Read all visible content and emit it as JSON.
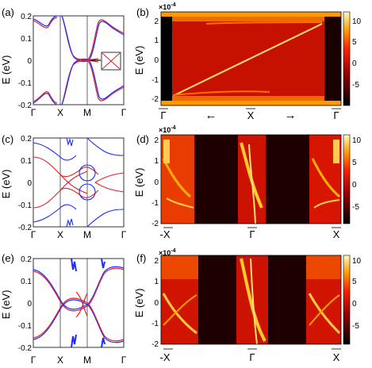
{
  "panels": {
    "a": {
      "label": "(a)",
      "ylabel": "E (eV)",
      "yticks": [
        "0.2",
        "0.1",
        "0",
        "-0.1",
        "-0.2"
      ],
      "xticks": [
        "Γ",
        "X",
        "M",
        "Γ"
      ]
    },
    "b": {
      "label": "(b)",
      "ylabel": "E (eV)",
      "scale": "×10",
      "scale_exp": "-4",
      "yticks": [
        "2",
        "1",
        "0",
        "-1",
        "-2"
      ],
      "xticks": [
        "Γ",
        "X",
        "Γ"
      ],
      "arrows": [
        "←",
        "→"
      ],
      "cbar_ticks": [
        "10",
        "5",
        "0",
        "-5"
      ]
    },
    "c": {
      "label": "(c)",
      "ylabel": "E (eV)",
      "yticks": [
        "0.2",
        "0.1",
        "0",
        "-0.1",
        "-0.2"
      ],
      "xticks": [
        "Γ",
        "X",
        "M",
        "Γ"
      ]
    },
    "d": {
      "label": "(d)",
      "ylabel": "E (eV)",
      "scale": "×10",
      "scale_exp": "-4",
      "yticks": [
        "2",
        "1",
        "0",
        "-1",
        "-2"
      ],
      "xticks": [
        "-X",
        "Γ",
        "X"
      ],
      "cbar_ticks": [
        "10",
        "5",
        "0",
        "-5"
      ]
    },
    "e": {
      "label": "(e)",
      "ylabel": "E (eV)",
      "yticks": [
        "0.2",
        "0.1",
        "0",
        "-0.1",
        "-0.2"
      ],
      "xticks": [
        "Γ",
        "X",
        "M",
        "Γ"
      ]
    },
    "f": {
      "label": "(f)",
      "ylabel": "E (eV)",
      "scale": "×10",
      "scale_exp": "-4",
      "yticks": [
        "2",
        "1",
        "0",
        "-1",
        "-2"
      ],
      "xticks": [
        "-X",
        "Γ",
        "X"
      ],
      "cbar_ticks": [
        "10",
        "5",
        "0",
        "-5"
      ]
    }
  },
  "colors": {
    "band_red": "#e0202a",
    "band_blue": "#1a2cff",
    "hot_dark": "#1a0000",
    "hot_red": "#e01000",
    "hot_yellow": "#ffe070"
  }
}
